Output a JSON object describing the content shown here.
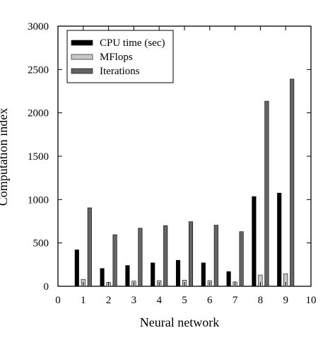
{
  "chart_data": {
    "type": "bar",
    "xlabel": "Neural network",
    "ylabel": "Computation index",
    "xlim": [
      0,
      10
    ],
    "ylim": [
      0,
      3000
    ],
    "xticks": [
      0,
      1,
      2,
      3,
      4,
      5,
      6,
      7,
      8,
      9,
      10
    ],
    "yticks": [
      0,
      500,
      1000,
      1500,
      2000,
      2500,
      3000
    ],
    "categories": [
      1,
      2,
      3,
      4,
      5,
      6,
      7,
      8,
      9
    ],
    "legend_position": "top-left",
    "grid": false,
    "series": [
      {
        "name": "CPU time (sec)",
        "color": "#000000",
        "values": [
          420,
          205,
          240,
          270,
          300,
          270,
          170,
          1035,
          1075
        ]
      },
      {
        "name": "MFlops",
        "color": "#c8c8c8",
        "values": [
          80,
          45,
          60,
          65,
          70,
          65,
          50,
          130,
          145
        ]
      },
      {
        "name": "Iterations",
        "color": "#646464",
        "values": [
          905,
          595,
          670,
          700,
          745,
          705,
          630,
          2135,
          2390
        ]
      }
    ]
  }
}
